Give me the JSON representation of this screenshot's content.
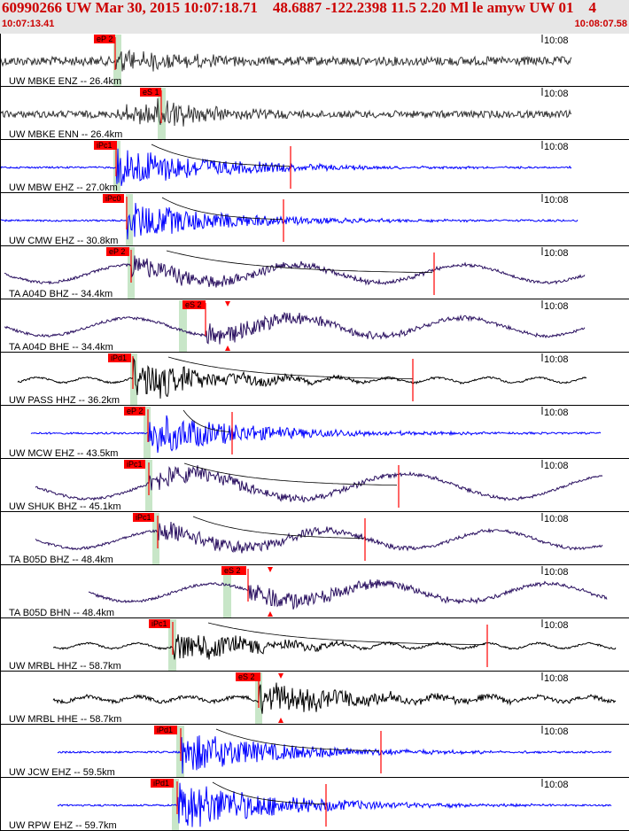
{
  "header": {
    "title": "60990266 UW Mar 30, 2015 10:07:18.71    48.6887 -122.2398 11.5 2.20 Ml le amyw UW 01    4",
    "start_time": "10:07:13.41",
    "end_time": "10:08:07.58",
    "bg_color": "#e6e6e6",
    "text_color": "#cc0000"
  },
  "tick_label": "10:08",
  "colors": {
    "pick_box": "#ff0000",
    "pick_window": "#c8e6c8",
    "trace_blue": "#0000ff",
    "trace_purple": "#2a1060",
    "trace_black": "#000000",
    "trace_gray": "#333333"
  },
  "traces": [
    {
      "label": "UW MBKE ENZ -- 26.4km",
      "pick": "eP 2",
      "color": "gray"
    },
    {
      "label": "UW MBKE ENN -- 26.4km",
      "pick": "eS 1",
      "color": "gray"
    },
    {
      "label": "UW MBW EHZ -- 27.0km",
      "pick": "iPc1",
      "color": "blue"
    },
    {
      "label": "UW CMW EHZ -- 30.8km",
      "pick": "iPc0",
      "color": "blue"
    },
    {
      "label": "TA A04D BHZ -- 34.4km",
      "pick": "eP 2",
      "color": "purple"
    },
    {
      "label": "TA A04D BHE -- 34.4km",
      "pick": "eS 2",
      "color": "purple"
    },
    {
      "label": "UW PASS HHZ -- 36.2km",
      "pick": "iPd1",
      "color": "black"
    },
    {
      "label": "UW MCW EHZ -- 43.5km",
      "pick": "eP 2",
      "color": "blue"
    },
    {
      "label": "UW SHUK BHZ -- 45.1km",
      "pick": "iPc1",
      "color": "purple"
    },
    {
      "label": "TA B05D BHZ -- 48.4km",
      "pick": "iPc1",
      "color": "purple"
    },
    {
      "label": "TA B05D BHN -- 48.4km",
      "pick": "eS 2",
      "color": "purple"
    },
    {
      "label": "UW MRBL HHZ -- 58.7km",
      "pick": "iPc1",
      "color": "black"
    },
    {
      "label": "UW MRBL HHE -- 58.7km",
      "pick": "eS 2",
      "color": "black"
    },
    {
      "label": "UW JCW EHZ -- 59.5km",
      "pick": "iPd1",
      "color": "blue"
    },
    {
      "label": "UW RPW EHZ -- 59.7km",
      "pick": "iPd1",
      "color": "blue"
    }
  ]
}
